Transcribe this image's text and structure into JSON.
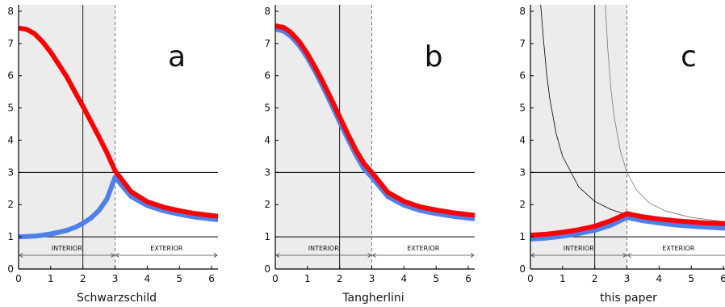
{
  "chart_data": [
    {
      "type": "line",
      "letter": "a",
      "xlabel": "Schwarzschild",
      "xlim": [
        0,
        6.2
      ],
      "ylim": [
        0,
        8.2
      ],
      "x_ticks": [
        0,
        1,
        2,
        3,
        4,
        5,
        6
      ],
      "y_ticks": [
        0,
        1,
        2,
        3,
        4,
        5,
        6,
        7,
        8
      ],
      "shaded_interval": [
        0,
        3
      ],
      "dashed_x": 3,
      "reference_lines": {
        "vertical_x": 2,
        "horizontal_y": [
          1,
          3
        ]
      },
      "regions": [
        {
          "label": "INTERIOR",
          "from": 0,
          "to": 3
        },
        {
          "label": "EXTERIOR",
          "from": 3,
          "to": 6.2
        }
      ],
      "series": [
        {
          "color": "#ff0000",
          "x": [
            0,
            0.25,
            0.5,
            0.75,
            1,
            1.25,
            1.5,
            1.75,
            2,
            2.25,
            2.5,
            2.75,
            3,
            3.5,
            4,
            4.5,
            5,
            5.5,
            6,
            6.2
          ],
          "y": [
            7.48,
            7.44,
            7.3,
            7.05,
            6.73,
            6.35,
            5.96,
            5.5,
            5.05,
            4.58,
            4.1,
            3.6,
            3.05,
            2.4,
            2.09,
            1.92,
            1.81,
            1.72,
            1.66,
            1.64
          ]
        },
        {
          "color": "#4f7fe8",
          "x": [
            0,
            0.25,
            0.5,
            0.75,
            1,
            1.25,
            1.5,
            1.75,
            2,
            2.25,
            2.5,
            2.75,
            3,
            3.5,
            4,
            4.5,
            5,
            5.5,
            6,
            6.2
          ],
          "y": [
            1.0,
            1.01,
            1.02,
            1.05,
            1.09,
            1.14,
            1.2,
            1.29,
            1.42,
            1.58,
            1.82,
            2.18,
            2.85,
            2.25,
            1.97,
            1.81,
            1.7,
            1.61,
            1.55,
            1.53
          ]
        }
      ],
      "thin_curves": []
    },
    {
      "type": "line",
      "letter": "b",
      "xlabel": "Tangherlini",
      "xlim": [
        0,
        6.2
      ],
      "ylim": [
        0,
        8.2
      ],
      "x_ticks": [
        0,
        1,
        2,
        3,
        4,
        5,
        6
      ],
      "y_ticks": [
        0,
        1,
        2,
        3,
        4,
        5,
        6,
        7,
        8
      ],
      "shaded_interval": [
        0,
        3
      ],
      "dashed_x": 3,
      "reference_lines": {
        "vertical_x": 2,
        "horizontal_y": [
          1,
          3
        ]
      },
      "regions": [
        {
          "label": "INTERIOR",
          "from": 0,
          "to": 3
        },
        {
          "label": "EXTERIOR",
          "from": 3,
          "to": 6.2
        }
      ],
      "series": [
        {
          "color": "#ff0000",
          "x": [
            0,
            0.25,
            0.5,
            0.75,
            1,
            1.25,
            1.5,
            1.75,
            2,
            2.25,
            2.5,
            2.75,
            3,
            3.5,
            4,
            4.5,
            5,
            5.5,
            6,
            6.2
          ],
          "y": [
            7.55,
            7.5,
            7.33,
            7.05,
            6.68,
            6.24,
            5.76,
            5.25,
            4.72,
            4.2,
            3.7,
            3.28,
            3.0,
            2.38,
            2.1,
            1.93,
            1.83,
            1.75,
            1.69,
            1.67
          ]
        },
        {
          "color": "#4f7fe8",
          "x": [
            0,
            0.25,
            0.5,
            0.75,
            1,
            1.25,
            1.5,
            1.75,
            2,
            2.25,
            2.5,
            2.75,
            3,
            3.5,
            4,
            4.5,
            5,
            5.5,
            6,
            6.2
          ],
          "y": [
            7.45,
            7.39,
            7.21,
            6.93,
            6.56,
            6.11,
            5.62,
            5.1,
            4.57,
            4.05,
            3.55,
            3.12,
            2.85,
            2.25,
            1.98,
            1.82,
            1.72,
            1.64,
            1.58,
            1.56
          ]
        }
      ],
      "thin_curves": []
    },
    {
      "type": "line",
      "letter": "c",
      "xlabel": "this paper",
      "xlim": [
        0,
        6.2
      ],
      "ylim": [
        0,
        8.2
      ],
      "x_ticks": [
        0,
        1,
        2,
        3,
        4,
        5,
        6
      ],
      "y_ticks": [
        0,
        1,
        2,
        3,
        4,
        5,
        6,
        7,
        8
      ],
      "shaded_interval": [
        0,
        3
      ],
      "dashed_x": 3,
      "reference_lines": {
        "vertical_x": 2,
        "horizontal_y": [
          1,
          3
        ]
      },
      "regions": [
        {
          "label": "INTERIOR",
          "from": 0,
          "to": 3
        },
        {
          "label": "EXTERIOR",
          "from": 3,
          "to": 6.2
        }
      ],
      "series": [
        {
          "color": "#ff0000",
          "x": [
            0,
            0.5,
            1,
            1.5,
            2,
            2.5,
            3,
            3.5,
            4,
            4.5,
            5,
            5.5,
            6,
            6.2
          ],
          "y": [
            1.05,
            1.08,
            1.14,
            1.22,
            1.33,
            1.5,
            1.72,
            1.62,
            1.55,
            1.5,
            1.46,
            1.43,
            1.41,
            1.4
          ]
        },
        {
          "color": "#4f7fe8",
          "x": [
            0,
            0.5,
            1,
            1.5,
            2,
            2.5,
            3,
            3.5,
            4,
            4.5,
            5,
            5.5,
            6,
            6.2
          ],
          "y": [
            0.93,
            0.96,
            1.02,
            1.1,
            1.2,
            1.36,
            1.6,
            1.5,
            1.43,
            1.37,
            1.33,
            1.3,
            1.27,
            1.26
          ]
        }
      ],
      "thin_curves": [
        {
          "color": "#000000",
          "width": 0.8,
          "x": [
            0.32,
            0.4,
            0.5,
            0.6,
            0.8,
            1.0,
            1.5,
            2.0,
            2.5,
            3.0,
            3.5,
            4.0,
            5.0,
            6.2
          ],
          "y": [
            8.2,
            7.2,
            6.1,
            5.3,
            4.2,
            3.5,
            2.55,
            2.1,
            1.85,
            1.68,
            1.57,
            1.5,
            1.42,
            1.38
          ]
        },
        {
          "color": "#777777",
          "width": 0.8,
          "x": [
            2.33,
            2.4,
            2.5,
            2.6,
            2.8,
            3.0,
            3.3,
            3.7,
            4.2,
            5.0,
            6.2
          ],
          "y": [
            8.2,
            6.9,
            5.6,
            4.75,
            3.65,
            3.0,
            2.45,
            2.05,
            1.8,
            1.6,
            1.45
          ]
        }
      ]
    }
  ]
}
